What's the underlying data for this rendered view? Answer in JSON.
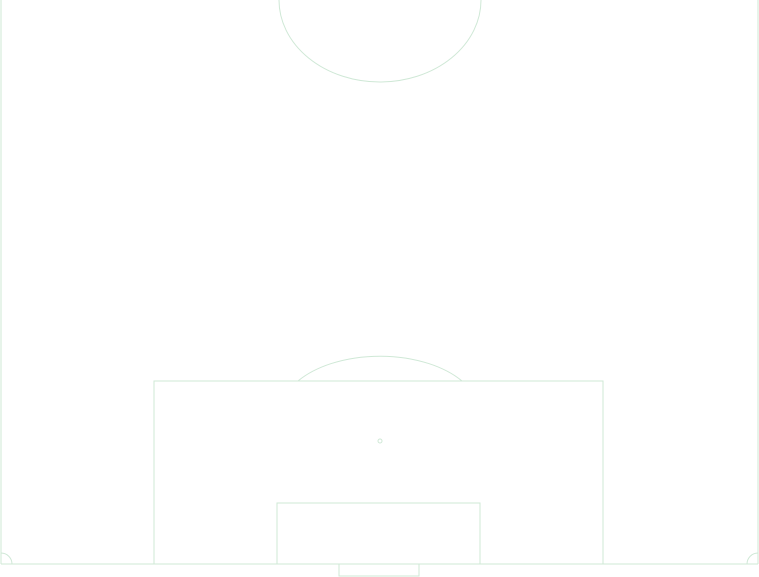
{
  "pitch": {
    "background_color": "#ffffff",
    "line_color": "#cfe8d6",
    "view": "half-pitch",
    "elements": [
      "touchline-left",
      "touchline-right",
      "goal-line",
      "center-circle",
      "penalty-area",
      "goal-area",
      "penalty-spot",
      "penalty-arc",
      "corner-arc-left",
      "corner-arc-right",
      "goal"
    ]
  }
}
